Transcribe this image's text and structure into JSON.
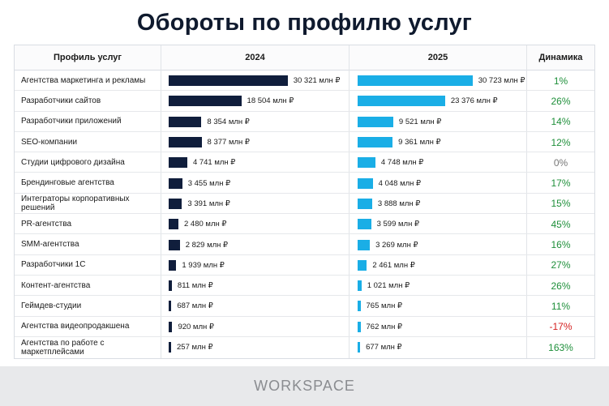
{
  "title": "Обороты по профилю услуг",
  "columns": {
    "profile": "Профиль услуг",
    "y2024": "2024",
    "y2025": "2025",
    "dynamics": "Динамика"
  },
  "colors": {
    "bar_2024": "#101e3c",
    "bar_2025": "#1aaee6",
    "growth": "#1e8f3a",
    "decline": "#d42020",
    "neutral": "#777777"
  },
  "footer": {
    "logo": "WORKSPACE"
  },
  "chart_data": {
    "type": "bar",
    "title": "Обороты по профилю услуг",
    "categories": [
      "Агентства маркетинга и рекламы",
      "Разработчики сайтов",
      "Разработчики приложений",
      "SEO-компании",
      "Студии цифрового дизайна",
      "Брендинговые агентства",
      "Интеграторы корпоративных решений",
      "PR-агентства",
      "SMM-агентства",
      "Разработчики 1С",
      "Контент-агентства",
      "Геймдев-студии",
      "Агентства видеопродакшена",
      "Агентства по работе с маркетплейсами"
    ],
    "series": [
      {
        "name": "2024",
        "values": [
          30321,
          18504,
          8354,
          8377,
          4741,
          3455,
          3391,
          2480,
          2829,
          1939,
          811,
          687,
          920,
          257
        ],
        "labels": [
          "30 321 млн ₽",
          "18 504 млн ₽",
          "8 354 млн ₽",
          "8 377 млн ₽",
          "4 741 млн ₽",
          "3 455 млн ₽",
          "3 391 млн ₽",
          "2 480 млн ₽",
          "2 829 млн ₽",
          "1 939 млн ₽",
          "811 млн ₽",
          "687 млн ₽",
          "920 млн ₽",
          "257 млн ₽"
        ]
      },
      {
        "name": "2025",
        "values": [
          30723,
          23376,
          9521,
          9361,
          4748,
          4048,
          3888,
          3599,
          3269,
          2461,
          1021,
          765,
          762,
          677
        ],
        "labels": [
          "30 723 млн ₽",
          "23 376 млн ₽",
          "9 521 млн ₽",
          "9 361 млн ₽",
          "4 748 млн ₽",
          "4 048 млн ₽",
          "3 888 млн ₽",
          "3 599 млн ₽",
          "3 269 млн ₽",
          "2 461 млн ₽",
          "1 021 млн ₽",
          "765 млн ₽",
          "762 млн ₽",
          "677 млн ₽"
        ]
      }
    ],
    "dynamics": [
      "1%",
      "26%",
      "14%",
      "12%",
      "0%",
      "17%",
      "15%",
      "45%",
      "16%",
      "27%",
      "26%",
      "11%",
      "-17%",
      "163%"
    ]
  }
}
